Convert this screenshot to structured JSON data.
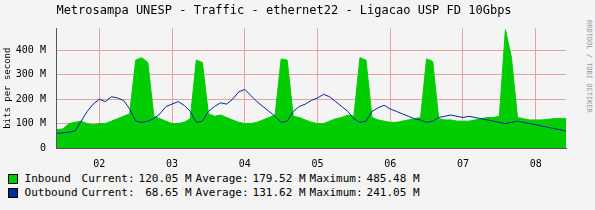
{
  "chart_data": {
    "type": "line",
    "title": "Metrosampa UNESP - Traffic - ethernet22 - Ligacao USP FD 10Gbps",
    "y_label": "bits per second",
    "watermark": "RRDTOOL / TOBI OETIKER",
    "categories": [
      null,
      null,
      null,
      null,
      null,
      null,
      null,
      "02",
      null,
      null,
      null,
      null,
      null,
      null,
      null,
      null,
      null,
      null,
      null,
      "03",
      null,
      null,
      null,
      null,
      null,
      null,
      null,
      null,
      null,
      null,
      null,
      "04",
      null,
      null,
      null,
      null,
      null,
      null,
      null,
      null,
      null,
      null,
      null,
      "05",
      null,
      null,
      null,
      null,
      null,
      null,
      null,
      null,
      null,
      null,
      null,
      "06",
      null,
      null,
      null,
      null,
      null,
      null,
      null,
      null,
      null,
      null,
      null,
      "07",
      null,
      null,
      null,
      null,
      null,
      null,
      null,
      null,
      null,
      null,
      null,
      "08",
      null,
      null,
      null,
      null,
      null
    ],
    "ylim": [
      0,
      490
    ],
    "yticks": [
      {
        "value": 0,
        "label": "0"
      },
      {
        "value": 100,
        "label": "100 M"
      },
      {
        "value": 200,
        "label": "200 M"
      },
      {
        "value": 300,
        "label": "300 M"
      },
      {
        "value": 400,
        "label": "400 M"
      }
    ],
    "grid": true,
    "stats_labels": [
      "Current:",
      "Average:",
      "Maximum:"
    ],
    "series": [
      {
        "name": "Inbound",
        "color": "#00cc00",
        "type": "area",
        "stats": [
          120.05,
          179.52,
          485.48
        ],
        "stats_text": [
          "120.05 M",
          "179.52 M",
          "485.48 M"
        ],
        "values": [
          75,
          78,
          100,
          105,
          110,
          100,
          95,
          100,
          100,
          110,
          120,
          130,
          140,
          360,
          370,
          350,
          130,
          120,
          110,
          100,
          100,
          105,
          120,
          360,
          350,
          140,
          130,
          135,
          125,
          115,
          105,
          100,
          100,
          105,
          115,
          125,
          135,
          365,
          360,
          130,
          125,
          115,
          105,
          100,
          100,
          110,
          120,
          125,
          135,
          130,
          370,
          360,
          125,
          115,
          110,
          105,
          105,
          110,
          115,
          120,
          125,
          365,
          355,
          120,
          115,
          115,
          110,
          110,
          110,
          115,
          120,
          125,
          125,
          130,
          485,
          370,
          125,
          120,
          115,
          115,
          115,
          118,
          120,
          122,
          120
        ]
      },
      {
        "name": "Outbound",
        "color": "#002a97",
        "type": "line",
        "stats": [
          68.65,
          131.62,
          241.05
        ],
        "stats_text": [
          "68.65 M",
          "131.62 M",
          "241.05 M"
        ],
        "values": [
          60,
          62,
          65,
          70,
          110,
          150,
          180,
          200,
          190,
          210,
          205,
          195,
          160,
          110,
          105,
          110,
          120,
          140,
          170,
          180,
          190,
          175,
          150,
          105,
          110,
          150,
          170,
          185,
          180,
          200,
          230,
          240,
          215,
          190,
          170,
          150,
          130,
          105,
          110,
          150,
          170,
          180,
          195,
          205,
          220,
          210,
          190,
          170,
          150,
          120,
          105,
          110,
          150,
          165,
          175,
          160,
          150,
          140,
          130,
          120,
          115,
          105,
          110,
          125,
          130,
          135,
          130,
          125,
          130,
          125,
          120,
          115,
          110,
          105,
          100,
          105,
          110,
          105,
          100,
          95,
          90,
          85,
          80,
          75,
          69
        ]
      }
    ]
  }
}
